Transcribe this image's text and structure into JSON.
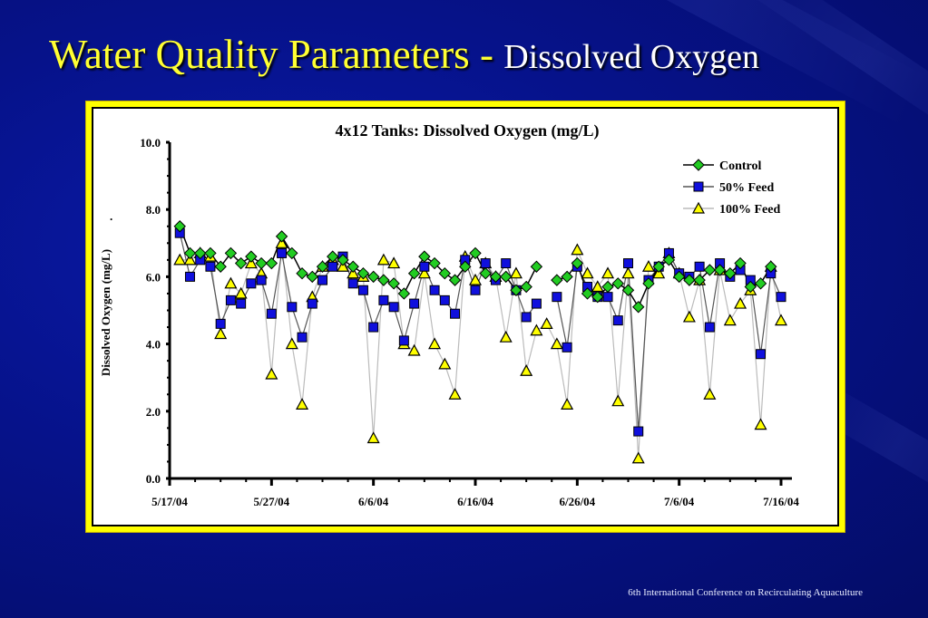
{
  "slide": {
    "title_main": "Water Quality Parameters - ",
    "title_sub": "Dissolved Oxygen",
    "footer": "6th International Conference on Recirculating Aquaculture",
    "colors": {
      "background": "#06128a",
      "title_yellow": "#ffff33",
      "frame_yellow": "#ffff00"
    }
  },
  "chart_data": {
    "type": "line",
    "title": "4x12 Tanks: Dissolved Oxygen (mg/L)",
    "xlabel": "",
    "ylabel": "Dissolved Oxygen (mg/L)",
    "ylim": [
      0,
      10
    ],
    "yticks": [
      "0.0",
      "2.0",
      "4.0",
      "6.0",
      "8.0",
      "10.0"
    ],
    "xticks": [
      "5/17/04",
      "5/27/04",
      "6/6/04",
      "6/16/04",
      "6/26/04",
      "7/6/04",
      "7/16/04"
    ],
    "x_unit": "days since 5/17/04",
    "grid": false,
    "legend_position": "top-right",
    "x": [
      1,
      2,
      3,
      4,
      5,
      6,
      7,
      8,
      9,
      10,
      11,
      12,
      13,
      14,
      15,
      16,
      17,
      18,
      19,
      20,
      21,
      22,
      23,
      24,
      25,
      26,
      27,
      28,
      29,
      30,
      31,
      32,
      33,
      34,
      35,
      36,
      37,
      38,
      39,
      40,
      41,
      42,
      43,
      44,
      45,
      46,
      47,
      48,
      49,
      50,
      51,
      52,
      53,
      54,
      55,
      56,
      57,
      58,
      59,
      60,
      61
    ],
    "series": [
      {
        "name": "Control",
        "marker": "diamond",
        "color": "#22cc22",
        "line_color": "#000000",
        "values": [
          7.5,
          6.7,
          6.7,
          6.7,
          6.3,
          6.7,
          6.4,
          6.6,
          6.4,
          6.4,
          7.2,
          6.7,
          6.1,
          6.0,
          6.3,
          6.6,
          6.5,
          6.3,
          6.1,
          6.0,
          5.9,
          5.8,
          5.5,
          6.1,
          6.6,
          6.4,
          6.1,
          5.9,
          6.3,
          6.7,
          6.1,
          6.0,
          6.0,
          5.6,
          5.7,
          6.3,
          null,
          5.9,
          6.0,
          6.4,
          5.5,
          5.4,
          5.7,
          5.8,
          5.6,
          5.1,
          5.8,
          6.3,
          6.5,
          6.0,
          5.9,
          5.9,
          6.2,
          6.2,
          6.1,
          6.4,
          5.7,
          5.8,
          6.3,
          null,
          null
        ]
      },
      {
        "name": "50% Feed",
        "marker": "square",
        "color": "#1010dd",
        "line_color": "#555555",
        "values": [
          7.3,
          6.0,
          6.5,
          6.3,
          4.6,
          5.3,
          5.2,
          5.8,
          5.9,
          4.9,
          6.7,
          5.1,
          4.2,
          5.2,
          5.9,
          6.3,
          6.6,
          5.8,
          5.6,
          4.5,
          5.3,
          5.1,
          4.1,
          5.2,
          6.3,
          5.6,
          5.3,
          4.9,
          6.5,
          5.6,
          6.4,
          5.9,
          6.4,
          5.6,
          4.8,
          5.2,
          null,
          5.4,
          3.9,
          6.3,
          5.7,
          5.4,
          5.4,
          4.7,
          6.4,
          1.4,
          5.9,
          6.3,
          6.7,
          6.1,
          6.0,
          6.3,
          4.5,
          6.4,
          6.0,
          6.2,
          5.9,
          3.7,
          6.1,
          5.4,
          null
        ]
      },
      {
        "name": "100% Feed",
        "marker": "triangle",
        "color": "#ffff00",
        "line_color": "#bbbbbb",
        "values": [
          6.5,
          6.5,
          6.7,
          6.6,
          4.3,
          5.8,
          5.5,
          6.4,
          6.1,
          3.1,
          7.0,
          4.0,
          2.2,
          5.4,
          6.3,
          6.5,
          6.3,
          6.1,
          6.0,
          1.2,
          6.5,
          6.4,
          4.0,
          3.8,
          6.1,
          4.0,
          3.4,
          2.5,
          6.6,
          5.9,
          6.4,
          6.0,
          4.2,
          6.1,
          3.2,
          4.4,
          4.6,
          4.0,
          2.2,
          6.8,
          6.1,
          5.7,
          6.1,
          2.3,
          6.1,
          0.6,
          6.3,
          6.1,
          6.7,
          6.1,
          4.8,
          5.9,
          2.5,
          6.2,
          4.7,
          5.2,
          5.6,
          1.6,
          6.3,
          4.7,
          null
        ]
      }
    ]
  }
}
